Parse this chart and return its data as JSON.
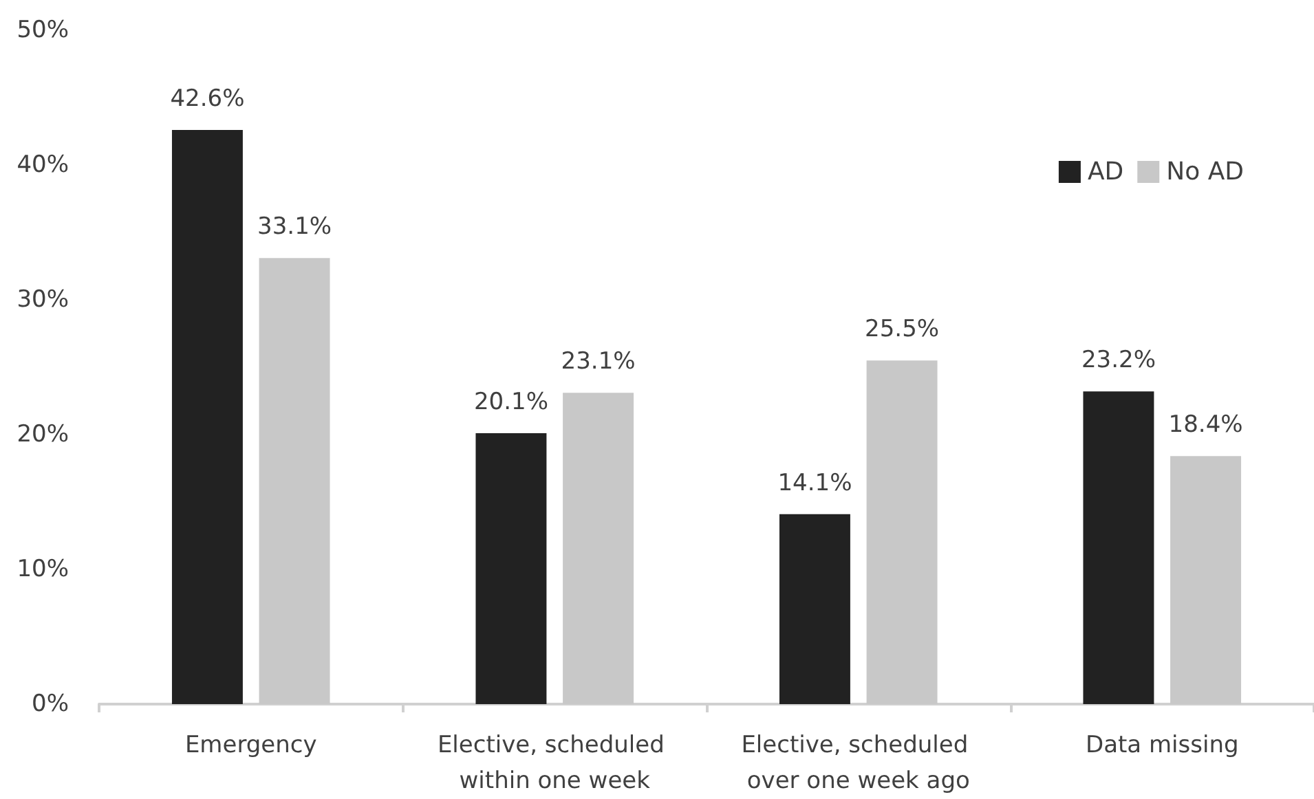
{
  "chart_data": {
    "type": "bar",
    "categories": [
      "Emergency",
      "Elective, scheduled within one week",
      "Elective, scheduled over one week ago",
      "Data missing"
    ],
    "series": [
      {
        "name": "AD",
        "color": "#222222",
        "values": [
          42.6,
          20.1,
          14.1,
          23.2
        ],
        "value_labels": [
          "42.6%",
          "20.1%",
          "14.1%",
          "23.2%"
        ]
      },
      {
        "name": "No AD",
        "color": "#c8c8c8",
        "values": [
          33.1,
          23.1,
          25.5,
          18.4
        ],
        "value_labels": [
          "33.1%",
          "23.1%",
          "25.5%",
          "18.4%"
        ]
      }
    ],
    "ylim": [
      0,
      50
    ],
    "yticks": [
      {
        "value": 0,
        "label": "0%"
      },
      {
        "value": 10,
        "label": "10%"
      },
      {
        "value": 20,
        "label": "20%"
      },
      {
        "value": 30,
        "label": "30%"
      },
      {
        "value": 40,
        "label": "40%"
      },
      {
        "value": 50,
        "label": "50%"
      }
    ],
    "grid": false,
    "legend": "top right"
  }
}
